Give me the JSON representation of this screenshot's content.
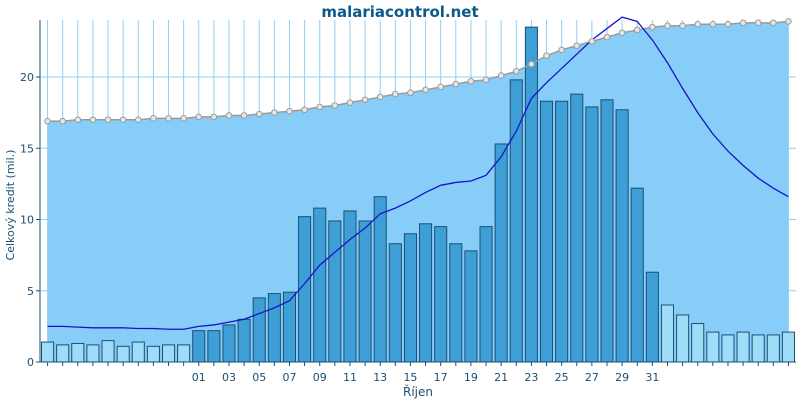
{
  "colors": {
    "background": "#ffffff",
    "area_fill": "#87cdf9",
    "bar_dark_fill": "#3e9fd6",
    "bar_dark_stroke": "#1c4f72",
    "bar_light_fill": "#9fdcf8",
    "bar_light_stroke": "#1c4f72",
    "avg_line": "#1515c8",
    "total_line": "#9a9a9a",
    "marker_fill": "#e6e6e6",
    "axis_text": "#1b4f72",
    "title_text": "#0a5a8a",
    "grid": "#8fd0ef",
    "axis": "#1b4f72"
  },
  "chart_data": {
    "type": "bar",
    "title": "malariacontrol.net",
    "xlabel": "Říjen",
    "ylabel": "Celkový kredit (mil.)",
    "ylim": [
      0,
      24
    ],
    "y_ticks": [
      0,
      5,
      10,
      15,
      20
    ],
    "grid": true,
    "x_tick_labels": [
      "01",
      "03",
      "05",
      "07",
      "09",
      "11",
      "13",
      "15",
      "17",
      "19",
      "21",
      "23",
      "25",
      "27",
      "29",
      "31"
    ],
    "x_tick_start_index": 10,
    "series": [
      {
        "kind": "bar",
        "values": [
          1.4,
          1.2,
          1.3,
          1.2,
          1.5,
          1.1,
          1.4,
          1.1,
          1.2,
          1.2,
          2.2,
          2.2,
          2.6,
          3.0,
          4.5,
          4.8,
          4.9,
          10.2,
          10.8,
          9.9,
          10.6,
          9.9,
          11.6,
          8.3,
          9.0,
          9.7,
          9.5,
          8.3,
          7.8,
          9.5,
          15.3,
          19.8,
          23.5,
          18.3,
          18.3,
          18.8,
          17.9,
          18.4,
          17.7,
          12.2,
          6.3,
          4.0,
          3.3,
          2.7,
          2.1,
          1.9,
          2.1,
          1.9,
          1.9,
          2.1
        ],
        "highlight_range": [
          10,
          40
        ]
      },
      {
        "kind": "area-with-markers",
        "values": [
          16.9,
          16.9,
          17.0,
          17.0,
          17.0,
          17.0,
          17.0,
          17.1,
          17.1,
          17.1,
          17.2,
          17.2,
          17.3,
          17.3,
          17.4,
          17.5,
          17.6,
          17.7,
          17.9,
          18.0,
          18.2,
          18.4,
          18.6,
          18.8,
          18.9,
          19.1,
          19.3,
          19.5,
          19.7,
          19.8,
          20.1,
          20.4,
          20.9,
          21.5,
          21.9,
          22.2,
          22.5,
          22.8,
          23.1,
          23.3,
          23.5,
          23.6,
          23.6,
          23.7,
          23.7,
          23.7,
          23.8,
          23.8,
          23.8,
          23.9
        ]
      },
      {
        "kind": "line",
        "values": [
          2.5,
          2.5,
          2.45,
          2.4,
          2.4,
          2.4,
          2.35,
          2.35,
          2.3,
          2.3,
          2.5,
          2.6,
          2.8,
          3.0,
          3.4,
          3.8,
          4.3,
          5.5,
          6.8,
          7.7,
          8.6,
          9.4,
          10.4,
          10.8,
          11.3,
          11.9,
          12.4,
          12.6,
          12.7,
          13.1,
          14.4,
          16.2,
          18.5,
          19.6,
          20.6,
          21.6,
          22.6,
          23.4,
          24.2,
          23.9,
          22.6,
          21.0,
          19.2,
          17.5,
          16.0,
          14.8,
          13.8,
          12.9,
          12.2,
          11.6
        ]
      }
    ]
  }
}
